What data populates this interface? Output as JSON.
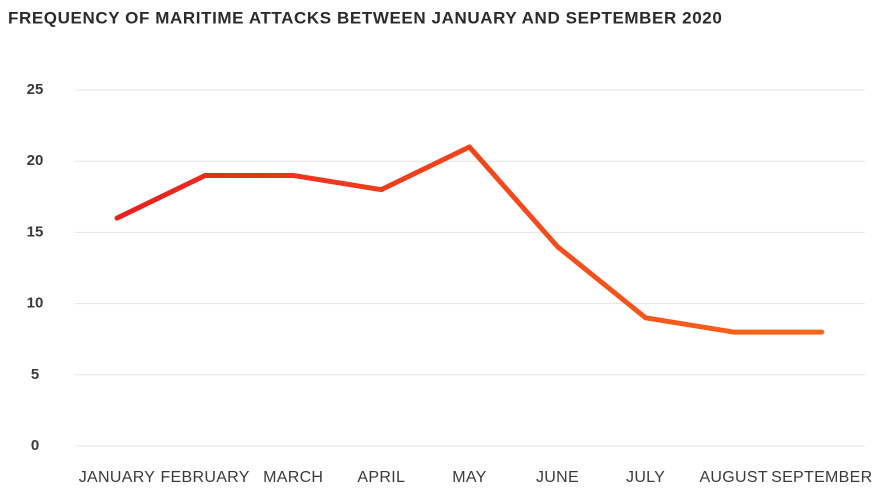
{
  "chart_data": {
    "type": "line",
    "title": "FREQUENCY OF MARITIME ATTACKS BETWEEN JANUARY AND SEPTEMBER 2020",
    "categories": [
      "JANUARY",
      "FEBRUARY",
      "MARCH",
      "APRIL",
      "MAY",
      "JUNE",
      "JULY",
      "AUGUST",
      "SEPTEMBER"
    ],
    "series": [
      {
        "color": "#e8221f",
        "end_color": "#f9681a",
        "values": [
          16,
          19,
          19,
          18,
          21,
          14,
          9,
          8,
          8
        ]
      }
    ],
    "ylim": [
      0,
      25
    ],
    "yticks": [
      0,
      5,
      10,
      15,
      20,
      25
    ],
    "grid": true
  }
}
